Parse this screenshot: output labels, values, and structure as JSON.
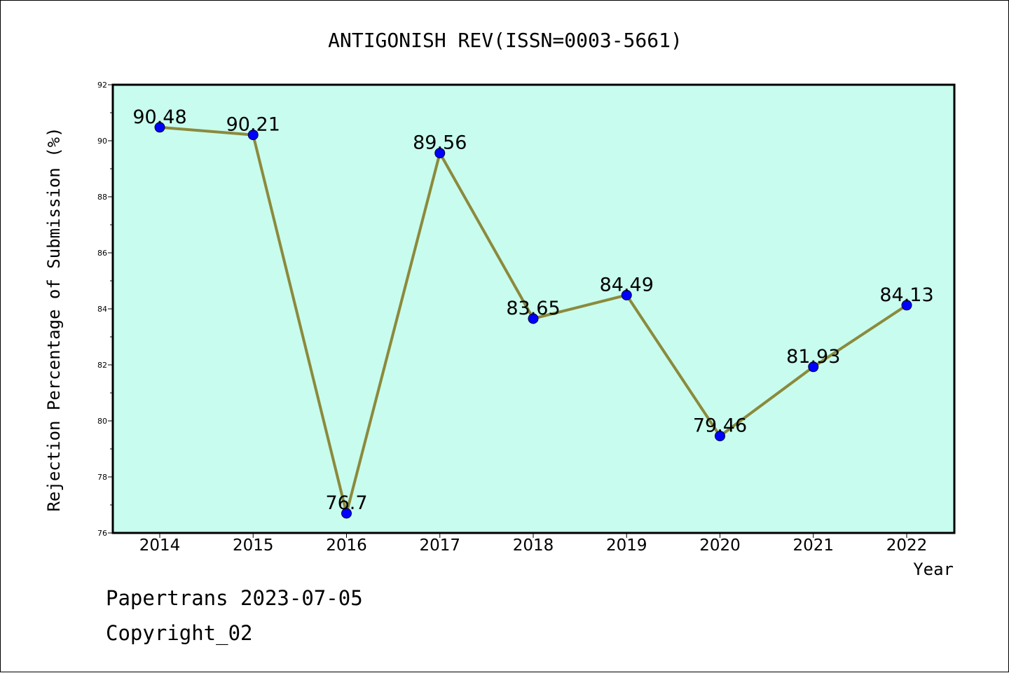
{
  "chart_data": {
    "type": "line",
    "title": "ANTIGONISH REV(ISSN=0003-5661)",
    "xlabel": "Year",
    "ylabel": "Rejection Percentage of Submission (%)",
    "categories": [
      "2014",
      "2015",
      "2016",
      "2017",
      "2018",
      "2019",
      "2020",
      "2021",
      "2022"
    ],
    "values": [
      90.48,
      90.21,
      76.7,
      89.56,
      83.65,
      84.49,
      79.46,
      81.93,
      84.13
    ],
    "data_labels": [
      "90.48",
      "90.21",
      "76.7",
      "89.56",
      "83.65",
      "84.49",
      "79.46",
      "81.93",
      "84.13"
    ],
    "ylim": [
      76,
      92
    ],
    "yticks": [
      "76",
      "78",
      "80",
      "82",
      "84",
      "86",
      "88",
      "90",
      "92"
    ],
    "grid": false,
    "colors": {
      "plot_background": "#c8fcee",
      "line": "#8b8a3c",
      "marker": "#0000ff"
    }
  },
  "footer": {
    "line1": "Papertrans 2023-07-05",
    "line2": "Copyright_02"
  }
}
